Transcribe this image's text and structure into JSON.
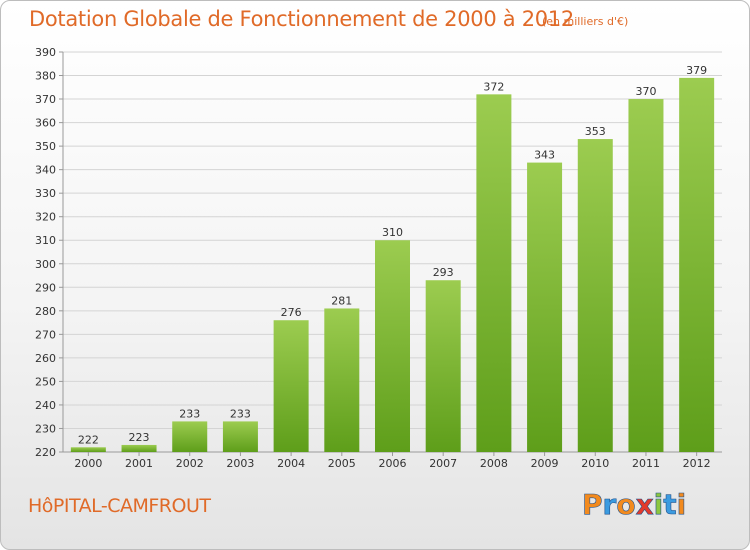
{
  "header": {
    "title": "Dotation Globale de Fonctionnement de 2000 à 2012",
    "unit": "(en milliers d'€)"
  },
  "footer": {
    "commune": "HôPITAL-CAMFROUT",
    "logo_letters": [
      "P",
      "r",
      "o",
      "x",
      "i",
      "t",
      "i"
    ],
    "logo_colors": [
      "#f28a1e",
      "#3b9be0",
      "#f28a1e",
      "#e23a2c",
      "#8cc63f",
      "#3b9be0",
      "#f28a1e"
    ]
  },
  "colors": {
    "bar_top": "#9ccc50",
    "bar_bottom": "#5e9e1a",
    "grid": "#d4d4d4",
    "axis_text": "#333333",
    "accent": "#e06a28"
  },
  "chart_data": {
    "type": "bar",
    "title": "Dotation Globale de Fonctionnement de 2000 à 2012",
    "subtitle": "(en milliers d'€)",
    "categories": [
      "2000",
      "2001",
      "2002",
      "2003",
      "2004",
      "2005",
      "2006",
      "2007",
      "2008",
      "2009",
      "2010",
      "2011",
      "2012"
    ],
    "values": [
      222,
      223,
      233,
      233,
      276,
      281,
      310,
      293,
      372,
      343,
      353,
      370,
      379
    ],
    "xlabel": "",
    "ylabel": "",
    "ylim": [
      220,
      390
    ],
    "yticks": [
      220,
      230,
      240,
      250,
      260,
      270,
      280,
      290,
      300,
      310,
      320,
      330,
      340,
      350,
      360,
      370,
      380,
      390
    ],
    "grid": true,
    "legend": "none"
  }
}
